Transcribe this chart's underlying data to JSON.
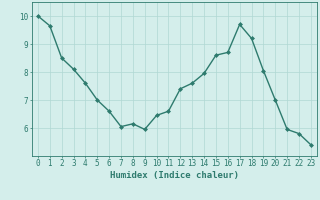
{
  "x": [
    0,
    1,
    2,
    3,
    4,
    5,
    6,
    7,
    8,
    9,
    10,
    11,
    12,
    13,
    14,
    15,
    16,
    17,
    18,
    19,
    20,
    21,
    22,
    23
  ],
  "y": [
    10.0,
    9.65,
    8.5,
    8.1,
    7.6,
    7.0,
    6.6,
    6.05,
    6.15,
    5.95,
    6.45,
    6.6,
    7.4,
    7.6,
    7.95,
    8.6,
    8.7,
    9.7,
    9.2,
    8.05,
    7.0,
    5.95,
    5.8,
    5.4
  ],
  "line_color": "#2e7b6e",
  "marker": "D",
  "marker_size": 2.0,
  "bg_color": "#d4eeeb",
  "grid_color": "#b0d8d4",
  "xlabel": "Humidex (Indice chaleur)",
  "ylim": [
    5.0,
    10.5
  ],
  "xlim": [
    -0.5,
    23.5
  ],
  "yticks": [
    6,
    7,
    8,
    9,
    10
  ],
  "xticks": [
    0,
    1,
    2,
    3,
    4,
    5,
    6,
    7,
    8,
    9,
    10,
    11,
    12,
    13,
    14,
    15,
    16,
    17,
    18,
    19,
    20,
    21,
    22,
    23
  ],
  "axis_fontsize": 6.5,
  "tick_fontsize": 5.5,
  "linewidth": 1.0
}
